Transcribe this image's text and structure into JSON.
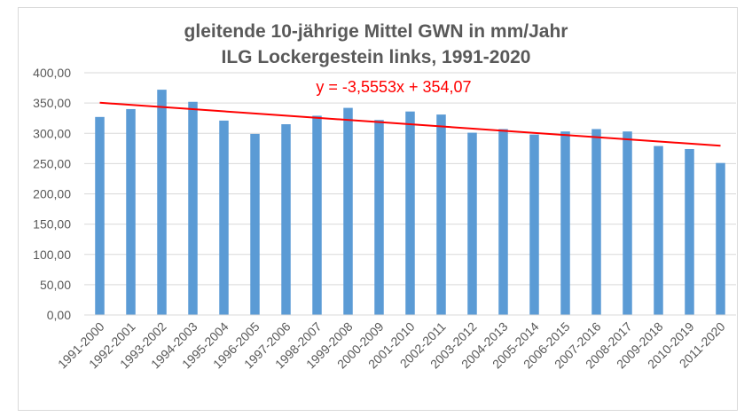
{
  "chart_data": {
    "type": "bar",
    "title_line1": "gleitende 10-jährige Mittel GWN in mm/Jahr",
    "title_line2": "ILG Lockergestein links, 1991-2020",
    "categories": [
      "1991-2000",
      "1992-2001",
      "1993-2002",
      "1994-2003",
      "1995-2004",
      "1996-2005",
      "1997-2006",
      "1998-2007",
      "1999-2008",
      "2000-2009",
      "2001-2010",
      "2002-2011",
      "2003-2012",
      "2004-2013",
      "2005-2014",
      "2006-2015",
      "2007-2016",
      "2008-2017",
      "2009-2018",
      "2010-2019",
      "2011-2020"
    ],
    "values": [
      327,
      340,
      372,
      352,
      321,
      299,
      315,
      329,
      342,
      322,
      336,
      331,
      301,
      307,
      298,
      303,
      307,
      303,
      279,
      274,
      251
    ],
    "ylim": [
      0,
      400
    ],
    "yticks": [
      "0,00",
      "50,00",
      "100,00",
      "150,00",
      "200,00",
      "250,00",
      "300,00",
      "350,00",
      "400,00"
    ],
    "grid": true,
    "bar_color": "#5b9bd5",
    "trendline": {
      "equation": "y = -3,5553x + 354,07",
      "slope": -3.5553,
      "intercept": 354.07,
      "color": "#ff0000"
    }
  }
}
